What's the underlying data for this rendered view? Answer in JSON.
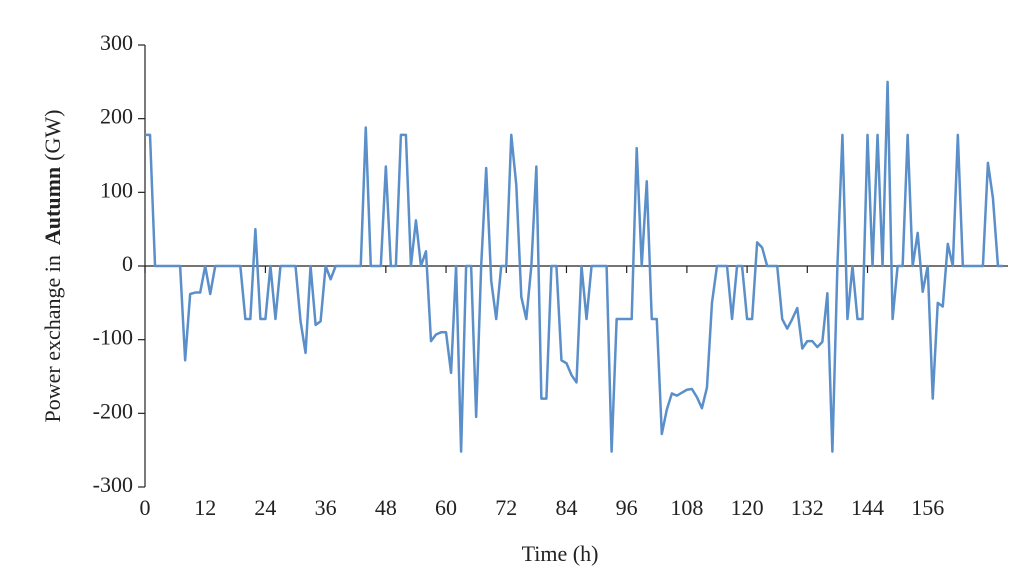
{
  "chart_data": {
    "type": "line",
    "ylabel": [
      "Power exchange in",
      "Autumn",
      "(GW)"
    ],
    "xlabel": "Time (h)",
    "x": [
      0,
      1,
      2,
      3,
      4,
      5,
      6,
      7,
      8,
      9,
      10,
      11,
      12,
      13,
      14,
      15,
      16,
      17,
      18,
      19,
      20,
      21,
      22,
      23,
      24,
      25,
      26,
      27,
      28,
      29,
      30,
      31,
      32,
      33,
      34,
      35,
      36,
      37,
      38,
      39,
      40,
      41,
      42,
      43,
      44,
      45,
      46,
      47,
      48,
      49,
      50,
      51,
      52,
      53,
      54,
      55,
      56,
      57,
      58,
      59,
      60,
      61,
      62,
      63,
      64,
      65,
      66,
      67,
      68,
      69,
      70,
      71,
      72,
      73,
      74,
      75,
      76,
      77,
      78,
      79,
      80,
      81,
      82,
      83,
      84,
      85,
      86,
      87,
      88,
      89,
      90,
      91,
      92,
      93,
      94,
      95,
      96,
      97,
      98,
      99,
      100,
      101,
      102,
      103,
      104,
      105,
      106,
      107,
      108,
      109,
      110,
      111,
      112,
      113,
      114,
      115,
      116,
      117,
      118,
      119,
      120,
      121,
      122,
      123,
      124,
      125,
      126,
      127,
      128,
      129,
      130,
      131,
      132,
      133,
      134,
      135,
      136,
      137,
      138,
      139,
      140,
      141,
      142,
      143,
      144,
      145,
      146,
      147,
      148,
      149,
      150,
      151,
      152,
      153,
      154,
      155,
      156,
      157,
      158,
      159,
      160,
      161,
      162,
      163,
      164,
      165,
      166,
      167,
      168,
      169,
      170,
      171
    ],
    "series": [
      {
        "name": "Power exchange",
        "color": "#5b8fc9",
        "values": [
          178,
          178,
          0,
          0,
          0,
          0,
          0,
          0,
          -128,
          -38,
          -36,
          -36,
          0,
          -38,
          0,
          0,
          0,
          0,
          0,
          0,
          -72,
          -72,
          50,
          -72,
          -72,
          0,
          -72,
          0,
          0,
          0,
          0,
          -75,
          -118,
          0,
          -80,
          -75,
          0,
          -18,
          0,
          0,
          0,
          0,
          0,
          0,
          188,
          0,
          0,
          0,
          135,
          0,
          0,
          178,
          178,
          0,
          62,
          0,
          20,
          -102,
          -93,
          -90,
          -90,
          -145,
          0,
          -252,
          0,
          0,
          -205,
          0,
          133,
          -20,
          -72,
          0,
          0,
          178,
          110,
          -42,
          -72,
          0,
          135,
          -180,
          -180,
          0,
          0,
          -128,
          -132,
          -148,
          -158,
          0,
          -72,
          0,
          0,
          0,
          0,
          -252,
          -72,
          -72,
          -72,
          -72,
          160,
          0,
          115,
          -72,
          -72,
          -228,
          -195,
          -173,
          -176,
          -172,
          -168,
          -167,
          -178,
          -193,
          -165,
          -50,
          0,
          0,
          0,
          -72,
          0,
          0,
          -72,
          -72,
          32,
          25,
          0,
          0,
          0,
          -72,
          -85,
          -72,
          -57,
          -112,
          -102,
          -102,
          -110,
          -103,
          -37,
          -252,
          0,
          178,
          -72,
          0,
          -72,
          -72,
          178,
          0,
          178,
          0,
          250,
          -72,
          0,
          0,
          178,
          0,
          45,
          -35,
          0,
          -180,
          -50,
          -55,
          30,
          0,
          178,
          0,
          0,
          0,
          0,
          0,
          140,
          92,
          0,
          0
        ]
      }
    ],
    "xlim": [
      0,
      172
    ],
    "ylim": [
      -300,
      300
    ],
    "xticks": [
      0,
      12,
      24,
      36,
      48,
      60,
      72,
      84,
      96,
      108,
      120,
      132,
      144,
      156
    ],
    "yticks": [
      -300,
      -200,
      -100,
      0,
      100,
      200,
      300
    ]
  }
}
